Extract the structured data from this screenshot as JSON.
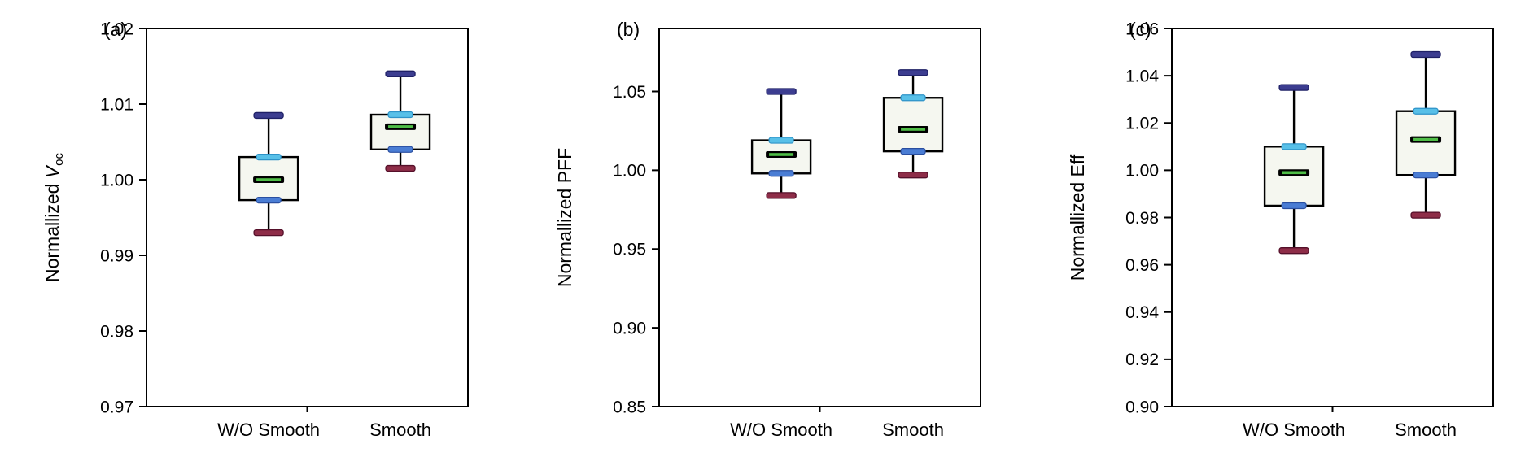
{
  "figure": {
    "background": "#ffffff",
    "description": "Three box-and-whisker panels comparing W/O Smooth vs Smooth"
  },
  "style": {
    "axis_color": "#000000",
    "box_fill": "#f5f7f0",
    "cap_top_fill": "#3c3d90",
    "cap_top_edge": "#1f2066",
    "q3_fill": "#58c0e8",
    "q3_edge": "#2e93c8",
    "median_fill": "#4fbe47",
    "median_edge": "#000000",
    "q1_fill": "#4a7dd4",
    "q1_edge": "#2a4fa0",
    "cap_bottom_fill": "#8e2d48",
    "cap_bottom_edge": "#55102a"
  },
  "chart_data": [
    {
      "type": "box",
      "panel_label": "(a)",
      "ylabel_parts": [
        {
          "text": "Normallized ",
          "style": "normal"
        },
        {
          "text": "V",
          "style": "italic"
        },
        {
          "text": "oc",
          "style": "sub"
        }
      ],
      "ylim": [
        0.97,
        1.02
      ],
      "yticks": [
        "0.97",
        "0.98",
        "0.99",
        "1.00",
        "1.01",
        "1.02"
      ],
      "categories": [
        "W/O Smooth",
        "Smooth"
      ],
      "series": [
        {
          "category": "W/O Smooth",
          "whisker_low": 0.993,
          "q1": 0.9973,
          "median": 1.0,
          "q3": 1.003,
          "whisker_high": 1.0085
        },
        {
          "category": "Smooth",
          "whisker_low": 1.0015,
          "q1": 1.004,
          "median": 1.007,
          "q3": 1.0086,
          "whisker_high": 1.014
        }
      ]
    },
    {
      "type": "box",
      "panel_label": "(b)",
      "ylabel_parts": [
        {
          "text": "Normallized PFF",
          "style": "normal"
        }
      ],
      "ylim": [
        0.85,
        1.09
      ],
      "yticks": [
        "0.85",
        "0.90",
        "0.95",
        "1.00",
        "1.05"
      ],
      "categories": [
        "W/O Smooth",
        "Smooth"
      ],
      "series": [
        {
          "category": "W/O Smooth",
          "whisker_low": 0.984,
          "q1": 0.998,
          "median": 1.01,
          "q3": 1.019,
          "whisker_high": 1.05
        },
        {
          "category": "Smooth",
          "whisker_low": 0.997,
          "q1": 1.012,
          "median": 1.026,
          "q3": 1.046,
          "whisker_high": 1.062
        }
      ]
    },
    {
      "type": "box",
      "panel_label": "(c)",
      "ylabel_parts": [
        {
          "text": "Normallized Eff",
          "style": "normal"
        }
      ],
      "ylim": [
        0.9,
        1.06
      ],
      "yticks": [
        "0.90",
        "0.92",
        "0.94",
        "0.96",
        "0.98",
        "1.00",
        "1.02",
        "1.04",
        "1.06"
      ],
      "categories": [
        "W/O Smooth",
        "Smooth"
      ],
      "series": [
        {
          "category": "W/O Smooth",
          "whisker_low": 0.966,
          "q1": 0.985,
          "median": 0.999,
          "q3": 1.01,
          "whisker_high": 1.035
        },
        {
          "category": "Smooth",
          "whisker_low": 0.981,
          "q1": 0.998,
          "median": 1.013,
          "q3": 1.025,
          "whisker_high": 1.049
        }
      ]
    }
  ]
}
